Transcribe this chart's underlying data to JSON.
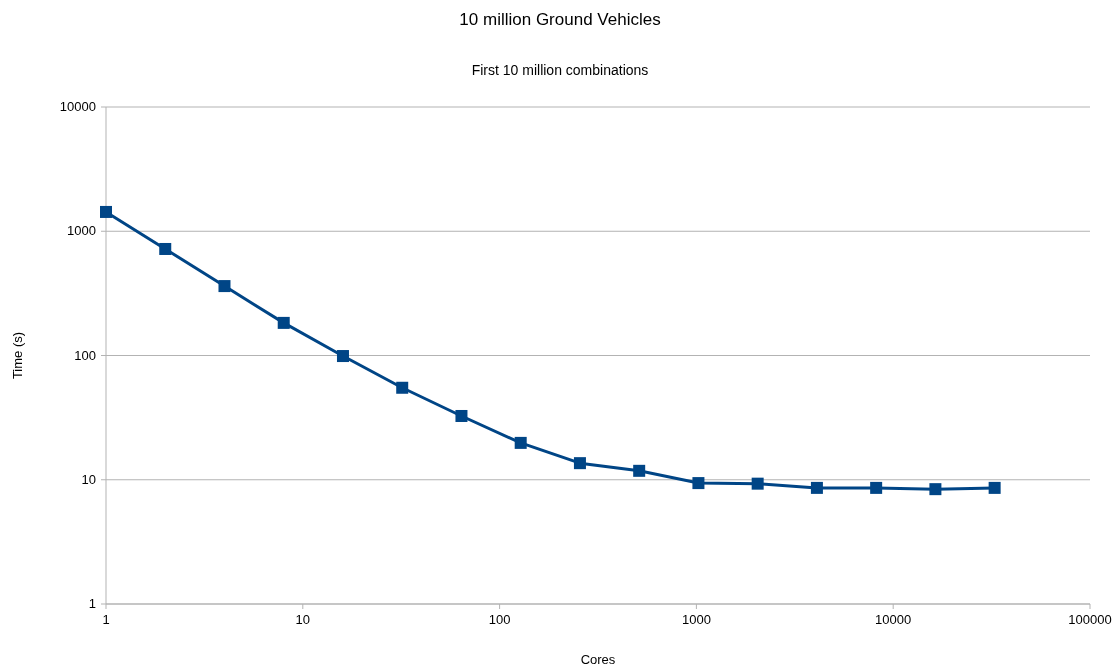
{
  "chart_data": {
    "type": "line",
    "title": "10 million Ground Vehicles",
    "subtitle": "First 10 million combinations",
    "xlabel": "Cores",
    "ylabel": "Time (s)",
    "log": "xy",
    "grid": "y",
    "marker": "square",
    "line_style": "solid",
    "x": [
      1,
      2,
      4,
      8,
      16,
      32,
      64,
      128,
      256,
      512,
      1024,
      2048,
      4096,
      8192,
      16384,
      32768
    ],
    "series": [
      {
        "color": "#004586",
        "values": [
          1430,
          720,
          362,
          183,
          99,
          55,
          32.6,
          19.8,
          13.6,
          11.8,
          9.4,
          9.3,
          8.6,
          8.6,
          8.4,
          8.6
        ]
      }
    ],
    "xlim": [
      1,
      100000
    ],
    "xticks": [
      1,
      10,
      100,
      1000,
      10000,
      100000
    ],
    "ylim": [
      1,
      10000
    ],
    "yticks": [
      1,
      10,
      100,
      1000,
      10000
    ]
  }
}
